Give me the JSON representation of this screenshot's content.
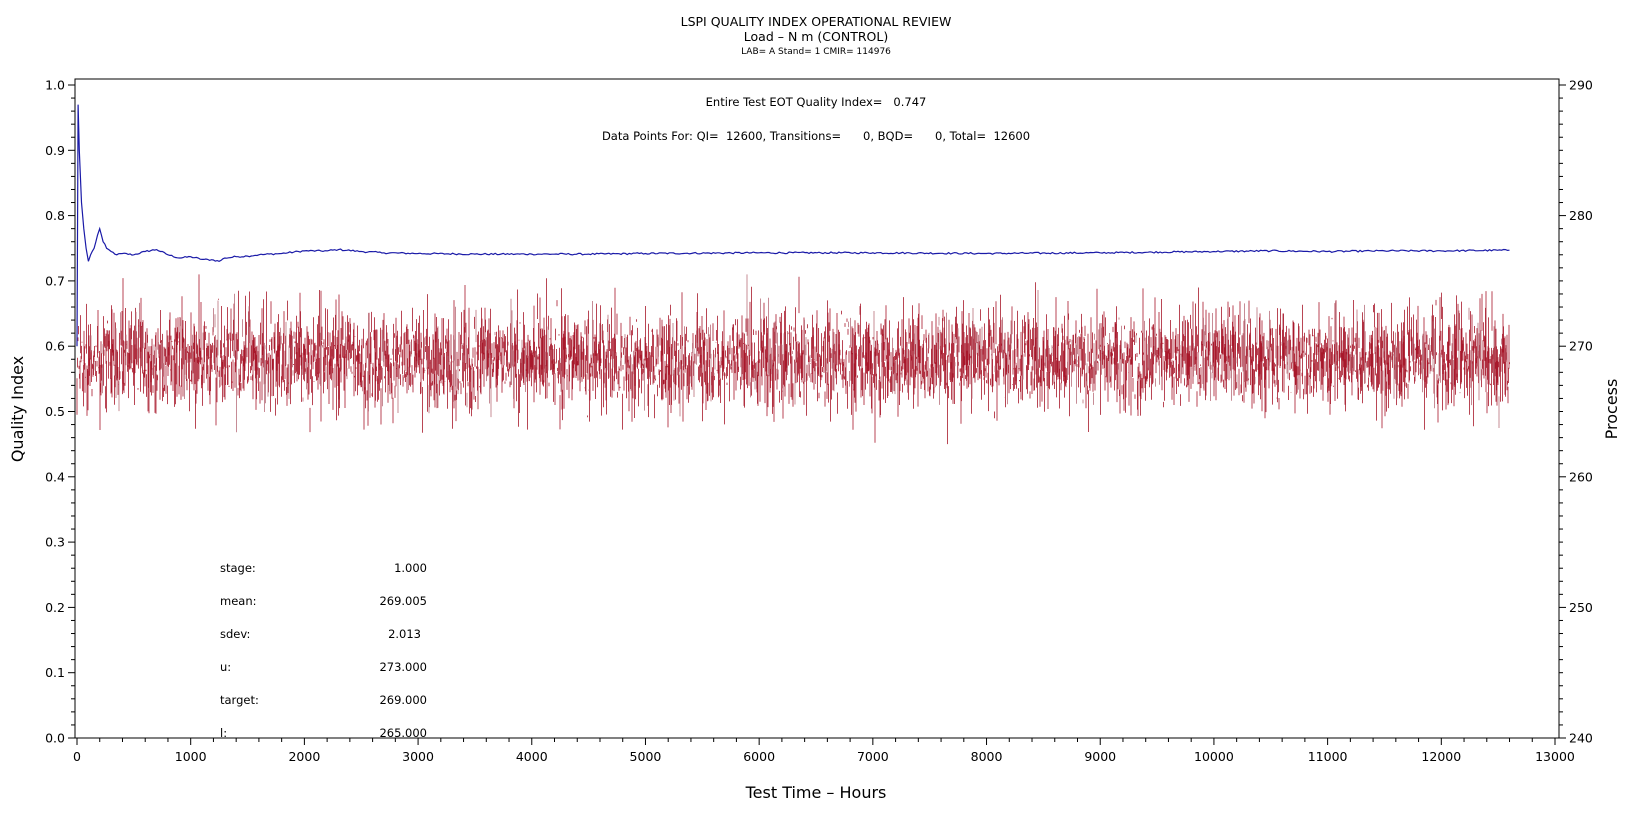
{
  "titles": {
    "main": "LSPI QUALITY INDEX OPERATIONAL REVIEW",
    "sub": "Load – N m (CONTROL)",
    "info": "LAB= A Stand= 1 CMIR= 114976"
  },
  "annotations": {
    "eot_quality_index": "Entire Test EOT Quality Index=   0.747",
    "data_points": "Data Points For: QI=  12600, Transitions=      0, BQD=      0, Total=  12600"
  },
  "stats": [
    {
      "label": "stage:",
      "value": "1.000"
    },
    {
      "label": "mean:",
      "value": "269.005"
    },
    {
      "label": "sdev:",
      "value": "2.013"
    },
    {
      "label": "u:",
      "value": "273.000"
    },
    {
      "label": "target:",
      "value": "269.000"
    },
    {
      "label": "l:",
      "value": "265.000"
    }
  ],
  "colors": {
    "quality_index_line": "#1a1aa8",
    "process_signal": "#a8182b",
    "process_signal_light": "#b9707c",
    "axes": "#000000"
  },
  "chart_data": {
    "type": "line",
    "xlabel": "Test Time – Hours",
    "ylabel_left": "Quality Index",
    "ylabel_right": "Process",
    "xlim": [
      0,
      13000
    ],
    "ylim_left": [
      0.0,
      1.0
    ],
    "ylim_right": [
      240,
      290
    ],
    "x_ticks": [
      0,
      1000,
      2000,
      3000,
      4000,
      5000,
      6000,
      7000,
      8000,
      9000,
      10000,
      11000,
      12000,
      13000
    ],
    "y_left_ticks": [
      0.0,
      0.1,
      0.2,
      0.3,
      0.4,
      0.5,
      0.6,
      0.7,
      0.8,
      0.9,
      1.0
    ],
    "y_right_ticks": [
      240,
      250,
      260,
      270,
      280,
      290
    ],
    "grid": false,
    "series": [
      {
        "axis": "left",
        "x": [
          0,
          10,
          20,
          40,
          60,
          80,
          100,
          120,
          150,
          180,
          200,
          230,
          260,
          300,
          350,
          400,
          500,
          600,
          700,
          800,
          900,
          1000,
          1100,
          1200,
          1250,
          1300,
          1400,
          1500,
          1600,
          1800,
          2000,
          2200,
          2300,
          2500,
          2700,
          3000,
          3500,
          4000,
          4500,
          5000,
          6000,
          7000,
          8000,
          9000,
          10000,
          10500,
          11000,
          11500,
          12000,
          12600
        ],
        "y": [
          0.6,
          0.97,
          0.9,
          0.82,
          0.78,
          0.75,
          0.73,
          0.74,
          0.75,
          0.77,
          0.78,
          0.76,
          0.75,
          0.745,
          0.74,
          0.742,
          0.74,
          0.745,
          0.748,
          0.74,
          0.735,
          0.737,
          0.733,
          0.732,
          0.73,
          0.735,
          0.737,
          0.738,
          0.74,
          0.742,
          0.746,
          0.746,
          0.748,
          0.745,
          0.743,
          0.742,
          0.741,
          0.741,
          0.741,
          0.742,
          0.743,
          0.743,
          0.742,
          0.743,
          0.745,
          0.746,
          0.745,
          0.746,
          0.746,
          0.747
        ]
      },
      {
        "axis": "right",
        "mean": 269.005,
        "sdev": 2.013,
        "count": 12600,
        "x_range": [
          0,
          12600
        ],
        "y_range": [
          265.0,
          273.5
        ]
      }
    ]
  }
}
